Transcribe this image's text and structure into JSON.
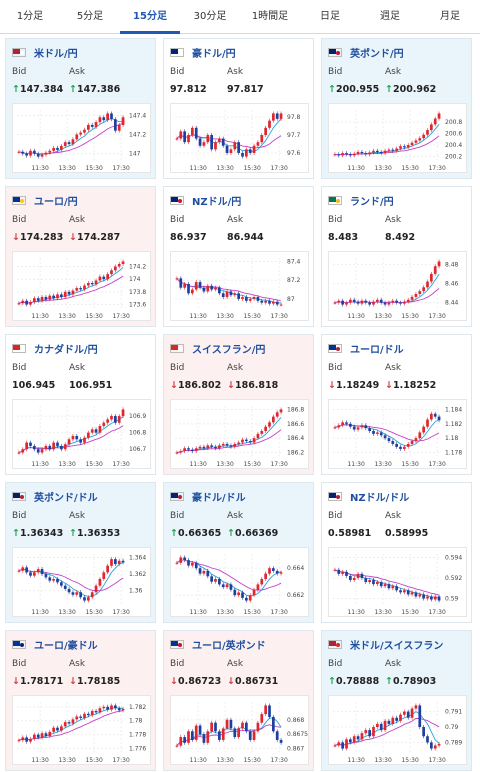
{
  "tabs": [
    "1分足",
    "5分足",
    "15分足",
    "30分足",
    "1時間足",
    "日足",
    "週足",
    "月足"
  ],
  "active_tab": 2,
  "labels": {
    "bid": "Bid",
    "ask": "Ask"
  },
  "colors": {
    "accent": "#1f58b5",
    "up_arrow": "#1ea34a",
    "down_arrow": "#d63a3a",
    "bull_candle": "#e0262f",
    "bear_candle": "#1f3f9f",
    "ma_short": "#2aa3d8",
    "ma_long": "#c341c6"
  },
  "x_ticks": [
    "11:30",
    "13:30",
    "15:30",
    "17:30"
  ],
  "cards": [
    {
      "pair": "米ドル/円",
      "trend": "up",
      "bid": "↑147.384",
      "ask": "↑147.386",
      "flag_colors": [
        "#b22234",
        "#ffffff"
      ],
      "y_ticks": [
        "147.4",
        "147.2",
        "147"
      ],
      "closes": [
        147.02,
        147.0,
        146.98,
        147.03,
        147.0,
        146.97,
        146.99,
        147.01,
        147.03,
        147.06,
        147.04,
        147.08,
        147.12,
        147.1,
        147.15,
        147.2,
        147.22,
        147.25,
        147.3,
        147.28,
        147.33,
        147.38,
        147.35,
        147.42,
        147.36,
        147.24,
        147.3,
        147.38
      ]
    },
    {
      "pair": "豪ドル/円",
      "trend": "flat",
      "bid": "97.812",
      "ask": "97.817",
      "flag_colors": [
        "#00247d",
        "#ffffff"
      ],
      "y_ticks": [
        "97.8",
        "97.7",
        "97.6"
      ],
      "closes": [
        97.68,
        97.72,
        97.66,
        97.7,
        97.74,
        97.68,
        97.64,
        97.66,
        97.7,
        97.62,
        97.66,
        97.68,
        97.64,
        97.6,
        97.62,
        97.66,
        97.6,
        97.58,
        97.62,
        97.6,
        97.64,
        97.66,
        97.7,
        97.74,
        97.78,
        97.82,
        97.79,
        97.82
      ]
    },
    {
      "pair": "英ポンド/円",
      "trend": "up",
      "bid": "↑200.955",
      "ask": "↑200.962",
      "flag_colors": [
        "#012169",
        "#c8102e"
      ],
      "y_ticks": [
        "200.8",
        "200.6",
        "200.4",
        "200.2"
      ],
      "closes": [
        200.24,
        200.22,
        200.26,
        200.24,
        200.22,
        200.25,
        200.28,
        200.26,
        200.24,
        200.27,
        200.3,
        200.28,
        200.26,
        200.3,
        200.32,
        200.3,
        200.34,
        200.38,
        200.36,
        200.4,
        200.44,
        200.48,
        200.52,
        200.58,
        200.66,
        200.76,
        200.86,
        200.95
      ]
    },
    {
      "pair": "ユーロ/円",
      "trend": "down",
      "bid": "↓174.283",
      "ask": "↓174.287",
      "flag_colors": [
        "#003399",
        "#ffcc00"
      ],
      "y_ticks": [
        "174.2",
        "174",
        "173.8",
        "173.6"
      ],
      "closes": [
        173.62,
        173.66,
        173.6,
        173.64,
        173.7,
        173.66,
        173.72,
        173.68,
        173.74,
        173.7,
        173.76,
        173.72,
        173.8,
        173.76,
        173.82,
        173.86,
        173.84,
        173.9,
        173.94,
        173.92,
        173.98,
        174.04,
        174.0,
        174.08,
        174.14,
        174.2,
        174.24,
        174.28
      ]
    },
    {
      "pair": "NZドル/円",
      "trend": "flat",
      "bid": "86.937",
      "ask": "86.944",
      "flag_colors": [
        "#00247d",
        "#cc142b"
      ],
      "y_ticks": [
        "87.4",
        "87.2",
        "87"
      ],
      "closes": [
        87.22,
        87.12,
        87.16,
        87.06,
        87.1,
        87.18,
        87.12,
        87.08,
        87.14,
        87.1,
        87.12,
        87.06,
        87.02,
        87.08,
        87.04,
        87.06,
        87.0,
        87.02,
        86.98,
        87.0,
        87.02,
        86.98,
        86.96,
        86.98,
        86.95,
        86.97,
        86.94,
        86.94
      ]
    },
    {
      "pair": "ランド/円",
      "trend": "flat",
      "bid": "8.483",
      "ask": "8.492",
      "flag_colors": [
        "#007a4d",
        "#ffb612"
      ],
      "y_ticks": [
        "8.48",
        "8.46",
        "8.44"
      ],
      "closes": [
        8.44,
        8.442,
        8.438,
        8.44,
        8.443,
        8.441,
        8.439,
        8.442,
        8.44,
        8.438,
        8.441,
        8.443,
        8.44,
        8.438,
        8.44,
        8.442,
        8.44,
        8.439,
        8.441,
        8.443,
        8.446,
        8.449,
        8.452,
        8.456,
        8.462,
        8.47,
        8.478,
        8.483
      ]
    },
    {
      "pair": "カナダドル/円",
      "trend": "flat",
      "bid": "106.945",
      "ask": "106.951",
      "flag_colors": [
        "#d52b1e",
        "#ffffff"
      ],
      "y_ticks": [
        "106.9",
        "106.8",
        "106.7"
      ],
      "closes": [
        106.68,
        106.7,
        106.74,
        106.72,
        106.7,
        106.68,
        106.7,
        106.72,
        106.7,
        106.74,
        106.72,
        106.7,
        106.73,
        106.76,
        106.78,
        106.76,
        106.74,
        106.77,
        106.8,
        106.82,
        106.8,
        106.84,
        106.86,
        106.88,
        106.9,
        106.86,
        106.9,
        106.94
      ]
    },
    {
      "pair": "スイスフラン/円",
      "trend": "down",
      "bid": "↓186.802",
      "ask": "↓186.818",
      "flag_colors": [
        "#d52b1e",
        "#ffffff"
      ],
      "y_ticks": [
        "186.8",
        "186.6",
        "186.4",
        "186.2"
      ],
      "closes": [
        186.2,
        186.22,
        186.26,
        186.24,
        186.22,
        186.26,
        186.28,
        186.26,
        186.3,
        186.28,
        186.26,
        186.3,
        186.32,
        186.3,
        186.28,
        186.32,
        186.34,
        186.38,
        186.36,
        186.34,
        186.4,
        186.46,
        186.5,
        186.56,
        186.62,
        186.7,
        186.76,
        186.8
      ]
    },
    {
      "pair": "ユーロ/ドル",
      "trend": "flat",
      "bid": "↓1.18249",
      "ask": "↓1.18252",
      "flag_colors": [
        "#003399",
        "#b22234"
      ],
      "y_ticks": [
        "1.184",
        "1.182",
        "1.18",
        "1.178"
      ],
      "closes": [
        1.1815,
        1.1818,
        1.1822,
        1.182,
        1.1816,
        1.1812,
        1.1815,
        1.1818,
        1.1814,
        1.181,
        1.1806,
        1.1808,
        1.1804,
        1.18,
        1.1796,
        1.1792,
        1.1788,
        1.1785,
        1.1788,
        1.1792,
        1.1796,
        1.18,
        1.1808,
        1.1816,
        1.1826,
        1.1834,
        1.183,
        1.1825
      ]
    },
    {
      "pair": "英ポンド/ドル",
      "trend": "up",
      "bid": "↑1.36343",
      "ask": "↑1.36353",
      "flag_colors": [
        "#012169",
        "#b22234"
      ],
      "y_ticks": [
        "1.364",
        "1.362",
        "1.36"
      ],
      "closes": [
        1.3624,
        1.3628,
        1.3622,
        1.3618,
        1.3622,
        1.3626,
        1.362,
        1.3616,
        1.3612,
        1.3614,
        1.361,
        1.3606,
        1.3602,
        1.3598,
        1.3595,
        1.3598,
        1.3592,
        1.3588,
        1.3592,
        1.3598,
        1.3606,
        1.3614,
        1.3622,
        1.363,
        1.3638,
        1.3632,
        1.3636,
        1.3634
      ]
    },
    {
      "pair": "豪ドル/ドル",
      "trend": "up",
      "bid": "↑0.66365",
      "ask": "↑0.66369",
      "flag_colors": [
        "#00247d",
        "#b22234"
      ],
      "y_ticks": [
        "0.664",
        "0.662"
      ],
      "closes": [
        0.6644,
        0.6648,
        0.6646,
        0.6642,
        0.6644,
        0.664,
        0.6636,
        0.6638,
        0.6634,
        0.663,
        0.6632,
        0.6628,
        0.6626,
        0.6628,
        0.6624,
        0.662,
        0.6622,
        0.6618,
        0.6616,
        0.662,
        0.6624,
        0.6628,
        0.6632,
        0.6636,
        0.664,
        0.6638,
        0.6636,
        0.6637
      ]
    },
    {
      "pair": "NZドル/ドル",
      "trend": "flat",
      "bid": "0.58981",
      "ask": "0.58995",
      "flag_colors": [
        "#00247d",
        "#b22234"
      ],
      "y_ticks": [
        "0.594",
        "0.592",
        "0.59"
      ],
      "closes": [
        0.5928,
        0.5924,
        0.5926,
        0.5922,
        0.5918,
        0.592,
        0.5924,
        0.592,
        0.5916,
        0.5918,
        0.5914,
        0.5916,
        0.5912,
        0.5914,
        0.591,
        0.5912,
        0.5908,
        0.5906,
        0.5908,
        0.5904,
        0.5906,
        0.5902,
        0.5904,
        0.59,
        0.5902,
        0.5899,
        0.5902,
        0.5898
      ]
    },
    {
      "pair": "ユーロ/豪ドル",
      "trend": "down",
      "bid": "↓1.78171",
      "ask": "↓1.78185",
      "flag_colors": [
        "#003399",
        "#00247d"
      ],
      "y_ticks": [
        "1.782",
        "1.78",
        "1.778",
        "1.776"
      ],
      "closes": [
        1.7772,
        1.7776,
        1.777,
        1.7774,
        1.778,
        1.7776,
        1.7782,
        1.7778,
        1.7784,
        1.779,
        1.7786,
        1.7792,
        1.7798,
        1.7796,
        1.7802,
        1.7806,
        1.7804,
        1.781,
        1.7808,
        1.7814,
        1.7812,
        1.7818,
        1.782,
        1.7816,
        1.7822,
        1.7818,
        1.7815,
        1.7817
      ]
    },
    {
      "pair": "ユーロ/英ポンド",
      "trend": "down",
      "bid": "↓0.86723",
      "ask": "↓0.86731",
      "flag_colors": [
        "#003399",
        "#c8102e"
      ],
      "y_ticks": [
        "0.868",
        "0.8675",
        "0.867"
      ],
      "closes": [
        0.8671,
        0.8674,
        0.8672,
        0.8676,
        0.8673,
        0.8678,
        0.8675,
        0.8672,
        0.8676,
        0.8679,
        0.8676,
        0.8673,
        0.8677,
        0.868,
        0.8677,
        0.8674,
        0.8677,
        0.8679,
        0.8676,
        0.8673,
        0.8676,
        0.8679,
        0.8682,
        0.8685,
        0.8681,
        0.8676,
        0.8673,
        0.8672
      ]
    },
    {
      "pair": "米ドル/スイスフラン",
      "trend": "up",
      "bid": "↑0.78888",
      "ask": "↑0.78903",
      "flag_colors": [
        "#b22234",
        "#d52b1e"
      ],
      "y_ticks": [
        "0.791",
        "0.79",
        "0.789"
      ],
      "closes": [
        0.7888,
        0.789,
        0.7886,
        0.7892,
        0.789,
        0.7894,
        0.7892,
        0.7896,
        0.7898,
        0.7894,
        0.79,
        0.7902,
        0.7898,
        0.7904,
        0.7902,
        0.7906,
        0.7904,
        0.7908,
        0.791,
        0.7906,
        0.7912,
        0.7914,
        0.79,
        0.7894,
        0.789,
        0.7886,
        0.7888,
        0.7889
      ]
    }
  ]
}
